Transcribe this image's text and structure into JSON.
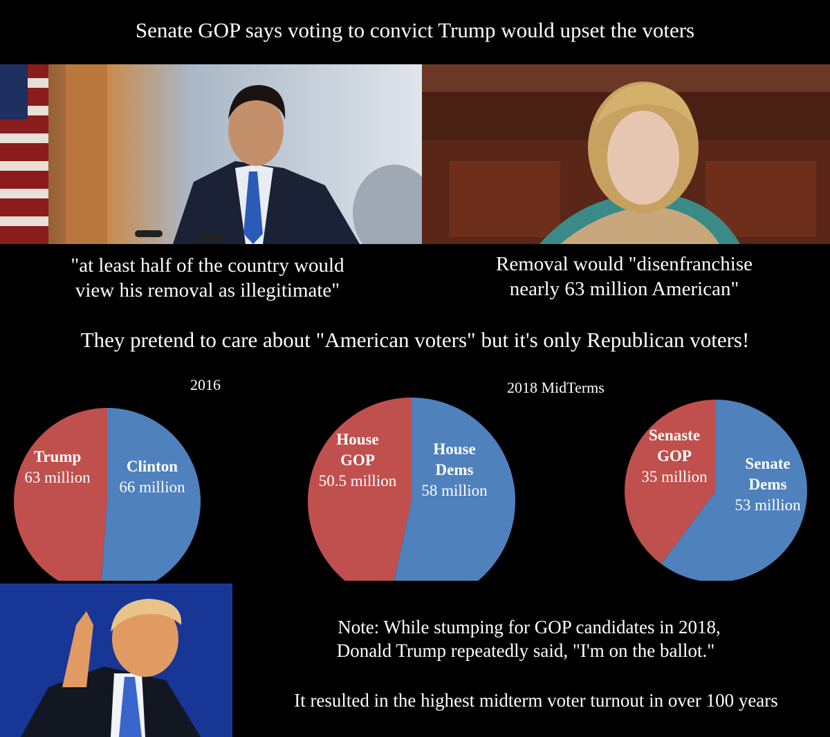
{
  "title": "Senate GOP says voting to convict Trump would upset the voters",
  "photos": {
    "left_alt": "Senator speaking at podium",
    "right_alt": "Senator speaking on Senate floor",
    "bottom_alt": "Donald Trump pointing"
  },
  "quotes": {
    "left_line1": "\"at least half of the country would",
    "left_line2": "view his removal as illegitimate\"",
    "right_line1": "Removal would \"disenfranchise",
    "right_line2": "nearly 63 million American\""
  },
  "subtitle": "They pretend to care about \"American voters\" but it's only Republican voters!",
  "chart_data": [
    {
      "type": "pie",
      "title": "2016",
      "slices": [
        {
          "label": "Trump",
          "value_label": "63 million",
          "value": 63,
          "color": "#c0504d"
        },
        {
          "label": "Clinton",
          "value_label": "66 million",
          "value": 66,
          "color": "#4f81bd"
        }
      ]
    },
    {
      "type": "pie",
      "title": "",
      "slices": [
        {
          "label": "House GOP",
          "value_label": "50.5 million",
          "value": 50.5,
          "color": "#c0504d"
        },
        {
          "label": "House Dems",
          "value_label": "58 million",
          "value": 58,
          "color": "#4f81bd"
        }
      ]
    },
    {
      "type": "pie",
      "title": "",
      "slices": [
        {
          "label": "Senaste GOP",
          "value_label": "35 million",
          "value": 35,
          "color": "#c0504d"
        },
        {
          "label": "Senate Dems",
          "value_label": "53 million",
          "value": 53,
          "color": "#4f81bd"
        }
      ]
    }
  ],
  "midterm_caption": "2018 MidTerms",
  "note": {
    "line1": "Note:  While stumping for GOP candidates in 2018,",
    "line2": "Donald Trump repeatedly said, \"I'm on the ballot.\"",
    "line3": "It resulted in the highest midterm voter turnout in over 100  years"
  }
}
